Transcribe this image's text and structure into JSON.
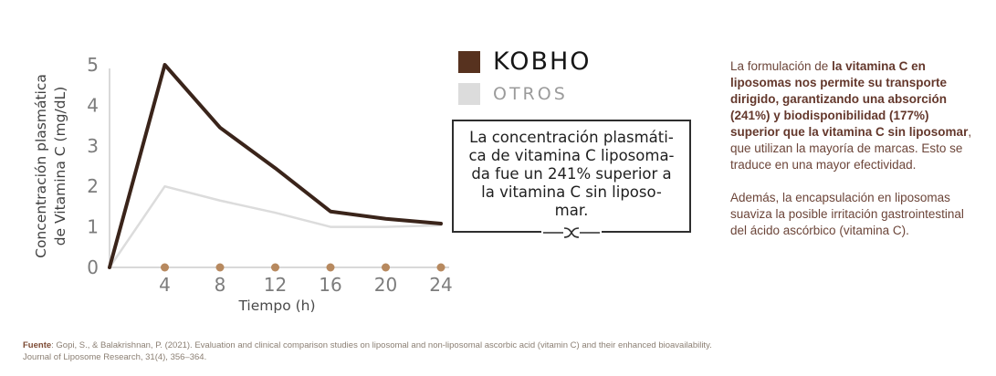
{
  "legend": {
    "kobho_label": "KOBHO",
    "otros_label": "OTROS",
    "kobho_color": "#57321f",
    "otros_color": "#dcdcdc"
  },
  "chart_data": {
    "type": "line",
    "x": [
      0,
      4,
      8,
      12,
      16,
      20,
      24
    ],
    "series": [
      {
        "name": "KOBHO",
        "color": "#3a241a",
        "width": 4,
        "values": [
          0,
          5,
          3.45,
          2.45,
          1.38,
          1.2,
          1.08
        ]
      },
      {
        "name": "OTROS",
        "color": "#dcdcdc",
        "width": 2.5,
        "values": [
          0,
          2,
          1.65,
          1.35,
          1.0,
          1.0,
          1.04
        ]
      }
    ],
    "title": "",
    "xlabel": "Tiempo (h)",
    "ylabel_lines": [
      "Concentración plasmática",
      "de Vitamina C (mg/dL)"
    ],
    "x_ticks": [
      4,
      8,
      12,
      16,
      20,
      24
    ],
    "y_ticks": [
      0,
      1,
      2,
      3,
      4,
      5
    ],
    "xlim": [
      0,
      24
    ],
    "ylim": [
      0,
      5
    ],
    "grid": false,
    "legend_position": "right",
    "marker_color": "#b7895f",
    "axis_color": "#d9d9d9",
    "tick_label_color": "#7c7c7c",
    "axis_label_color": "#4a4a4a",
    "ylabel_color": "#3f3f3f",
    "markers_on_x_axis": true
  },
  "callout": {
    "lines": [
      "La concentración plasmáti-",
      "ca de vitamina C liposoma-",
      "da fue un 241% superior a",
      "la vitamina C sin liposo-",
      "mar."
    ]
  },
  "right_text": {
    "p1_intro": "La formulación de ",
    "p1_bold": "la vitamina C en liposomas nos permite su transporte dirigido, garantizando una absorción (241%) y biodisponibilidad (177%) superior que la vitamina C sin liposomar",
    "p1_rest": ", que utilizan la mayoría de marcas. Esto se traduce en una mayor efectividad.",
    "p2": "Además, la encapsulación en liposomas suaviza la posible irritación gastrointestinal del ácido ascórbico (vitamina C)."
  },
  "footer": {
    "label": "Fuente",
    "text": ": Gopi, S., & Balakrishnan, P. (2021). Evaluation and clinical comparison studies on liposomal and non-liposomal ascorbic acid (vitamin C) and their enhanced bioavailability. Journal of Liposome Research, 31(4), 356–364."
  }
}
